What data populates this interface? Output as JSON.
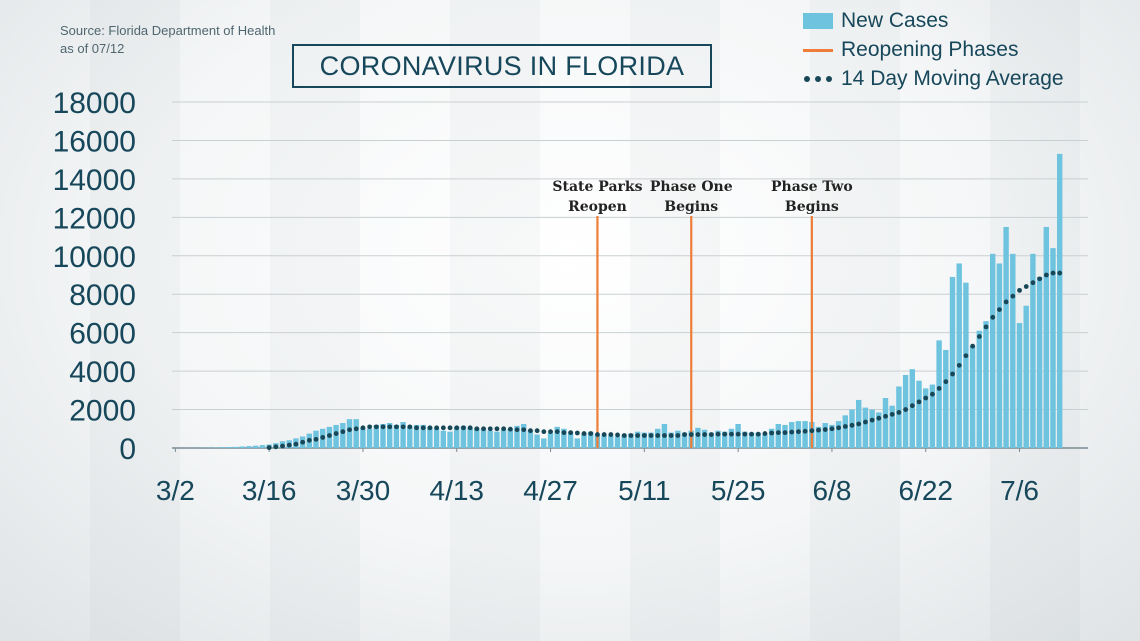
{
  "source": {
    "line1": "Source: Florida Department of Health",
    "line2": "as of 07/12"
  },
  "title": "CORONAVIRUS IN FLORIDA",
  "legend": [
    {
      "key": "bars",
      "label": "New Cases",
      "color": "#6ec3df",
      "symbol": "bar"
    },
    {
      "key": "phases",
      "label": "Reopening Phases",
      "color": "#ee7d37",
      "symbol": "line"
    },
    {
      "key": "avg",
      "label": "14 Day Moving Average",
      "color": "#184757",
      "symbol": "dots"
    }
  ],
  "chart_data": {
    "type": "bar",
    "title": "CORONAVIRUS IN FLORIDA",
    "x_ticks": [
      "3/2",
      "3/16",
      "3/30",
      "4/13",
      "4/27",
      "5/11",
      "5/25",
      "6/8",
      "6/22",
      "7/6"
    ],
    "y_ticks": [
      "0",
      "2000",
      "4000",
      "6000",
      "8000",
      "10000",
      "12000",
      "14000",
      "16000",
      "18000"
    ],
    "ylim": [
      0,
      18000
    ],
    "grid": "horizontal",
    "legend_position": "top-right",
    "dates": [
      "3/2",
      "3/3",
      "3/4",
      "3/5",
      "3/6",
      "3/7",
      "3/8",
      "3/9",
      "3/10",
      "3/11",
      "3/12",
      "3/13",
      "3/14",
      "3/15",
      "3/16",
      "3/17",
      "3/18",
      "3/19",
      "3/20",
      "3/21",
      "3/22",
      "3/23",
      "3/24",
      "3/25",
      "3/26",
      "3/27",
      "3/28",
      "3/29",
      "3/30",
      "3/31",
      "4/1",
      "4/2",
      "4/3",
      "4/4",
      "4/5",
      "4/6",
      "4/7",
      "4/8",
      "4/9",
      "4/10",
      "4/11",
      "4/12",
      "4/13",
      "4/14",
      "4/15",
      "4/16",
      "4/17",
      "4/18",
      "4/19",
      "4/20",
      "4/21",
      "4/22",
      "4/23",
      "4/24",
      "4/25",
      "4/26",
      "4/27",
      "4/28",
      "4/29",
      "4/30",
      "5/1",
      "5/2",
      "5/3",
      "5/4",
      "5/5",
      "5/6",
      "5/7",
      "5/8",
      "5/9",
      "5/10",
      "5/11",
      "5/12",
      "5/13",
      "5/14",
      "5/15",
      "5/16",
      "5/17",
      "5/18",
      "5/19",
      "5/20",
      "5/21",
      "5/22",
      "5/23",
      "5/24",
      "5/25",
      "5/26",
      "5/27",
      "5/28",
      "5/29",
      "5/30",
      "5/31",
      "6/1",
      "6/2",
      "6/3",
      "6/4",
      "6/5",
      "6/6",
      "6/7",
      "6/8",
      "6/9",
      "6/10",
      "6/11",
      "6/12",
      "6/13",
      "6/14",
      "6/15",
      "6/16",
      "6/17",
      "6/18",
      "6/19",
      "6/20",
      "6/21",
      "6/22",
      "6/23",
      "6/24",
      "6/25",
      "6/26",
      "6/27",
      "6/28",
      "6/29",
      "6/30",
      "7/1",
      "7/2",
      "7/3",
      "7/4",
      "7/5",
      "7/6",
      "7/7",
      "7/8",
      "7/9",
      "7/10",
      "7/11",
      "7/12"
    ],
    "series": [
      {
        "name": "New Cases",
        "color": "#6ec3df",
        "values": [
          0,
          0,
          5,
          5,
          10,
          15,
          20,
          40,
          50,
          60,
          80,
          100,
          120,
          150,
          180,
          250,
          350,
          400,
          500,
          600,
          750,
          900,
          1000,
          1100,
          1200,
          1300,
          1500,
          1500,
          1050,
          1000,
          1200,
          1250,
          1300,
          1200,
          1350,
          1100,
          1200,
          1200,
          1100,
          1050,
          900,
          850,
          1100,
          1150,
          1050,
          1050,
          1000,
          900,
          850,
          950,
          1000,
          1150,
          1250,
          950,
          700,
          500,
          800,
          1100,
          1000,
          800,
          500,
          750,
          850,
          700,
          650,
          650,
          600,
          700,
          750,
          850,
          800,
          800,
          1000,
          1250,
          800,
          900,
          800,
          900,
          1050,
          950,
          800,
          900,
          850,
          1000,
          1250,
          850,
          800,
          800,
          700,
          1000,
          1250,
          1200,
          1350,
          1400,
          1400,
          1350,
          1100,
          1300,
          1200,
          1400,
          1700,
          2000,
          2500,
          2100,
          2000,
          1850,
          2600,
          2200,
          3200,
          3800,
          4100,
          3500,
          3100,
          3300,
          5600,
          5100,
          8900,
          9600,
          8600,
          5300,
          6100,
          6600,
          10100,
          9600,
          11500,
          10100,
          6500,
          7400,
          10100,
          8900,
          11500,
          10400,
          15300
        ]
      },
      {
        "name": "14 Day Moving Average",
        "color": "#184757",
        "values": [
          0,
          0,
          0,
          0,
          0,
          0,
          0,
          0,
          0,
          0,
          0,
          0,
          0,
          0,
          20,
          60,
          100,
          150,
          200,
          300,
          400,
          450,
          550,
          650,
          750,
          850,
          950,
          1000,
          1050,
          1100,
          1100,
          1100,
          1100,
          1100,
          1100,
          1100,
          1050,
          1050,
          1050,
          1050,
          1050,
          1050,
          1050,
          1050,
          1050,
          1000,
          1000,
          1000,
          1000,
          1000,
          980,
          950,
          950,
          900,
          900,
          850,
          850,
          850,
          800,
          800,
          780,
          750,
          750,
          700,
          700,
          700,
          680,
          650,
          650,
          650,
          650,
          650,
          650,
          650,
          650,
          650,
          700,
          700,
          700,
          700,
          700,
          720,
          720,
          720,
          720,
          720,
          720,
          720,
          750,
          780,
          800,
          800,
          830,
          850,
          870,
          900,
          930,
          960,
          1000,
          1050,
          1120,
          1180,
          1250,
          1350,
          1450,
          1550,
          1650,
          1750,
          1850,
          2000,
          2200,
          2400,
          2600,
          2800,
          3100,
          3450,
          3850,
          4300,
          4800,
          5300,
          5800,
          6300,
          6800,
          7200,
          7600,
          7900,
          8200,
          8400,
          8600,
          8800,
          9000,
          9100,
          9100
        ]
      }
    ],
    "phases": [
      {
        "date": "5/4",
        "label_lines": [
          "State Parks",
          "Reopen"
        ]
      },
      {
        "date": "5/18",
        "label_lines": [
          "Phase One",
          "Begins"
        ]
      },
      {
        "date": "6/5",
        "label_lines": [
          "Phase Two",
          "Begins"
        ]
      }
    ]
  }
}
